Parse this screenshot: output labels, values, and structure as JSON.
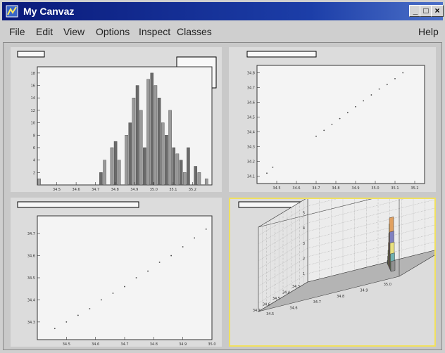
{
  "window": {
    "title": "My Canvaz",
    "controls": {
      "minimize": "_",
      "maximize": "□",
      "close": "×"
    }
  },
  "menubar": {
    "items": [
      "File",
      "Edit",
      "View",
      "Options",
      "Inspect",
      "Classes"
    ],
    "help": "Help"
  },
  "colors": {
    "title_bar": "#1c3ea8",
    "selected_pad_border": "#f0e060",
    "frame": "#f4f4f4"
  },
  "chart_data": [
    {
      "type": "bar",
      "title": "",
      "x_ticks": [
        "34.5",
        "34.6",
        "34.7",
        "34.8",
        "34.9",
        "35.0",
        "35.1",
        "35.2"
      ],
      "y_ticks": [
        "2",
        "4",
        "6",
        "8",
        "10",
        "12",
        "14",
        "16",
        "18"
      ],
      "xlim": [
        34.4,
        35.3
      ],
      "ylim": [
        0,
        19
      ],
      "values": [
        1,
        0,
        0,
        0,
        0,
        0,
        0,
        0,
        0,
        0,
        0,
        0,
        0,
        0,
        0,
        0,
        0,
        2,
        4,
        0,
        6,
        7,
        4,
        0,
        8,
        10,
        14,
        16,
        12,
        6,
        17,
        18,
        16,
        14,
        10,
        8,
        12,
        6,
        5,
        4,
        2,
        6,
        0,
        3,
        2,
        0,
        1,
        0
      ]
    },
    {
      "type": "scatter",
      "title": "",
      "x_ticks": [
        "34.5",
        "34.6",
        "34.7",
        "34.8",
        "34.9",
        "35.0",
        "35.1",
        "35.2"
      ],
      "y_ticks": [
        "34.1",
        "34.2",
        "34.3",
        "34.4",
        "34.5",
        "34.6",
        "34.7",
        "34.8"
      ],
      "xlim": [
        34.4,
        35.25
      ],
      "ylim": [
        34.05,
        34.85
      ],
      "points": [
        [
          34.45,
          34.12
        ],
        [
          34.48,
          34.16
        ],
        [
          34.7,
          34.37
        ],
        [
          34.74,
          34.41
        ],
        [
          34.78,
          34.45
        ],
        [
          34.82,
          34.49
        ],
        [
          34.86,
          34.53
        ],
        [
          34.9,
          34.57
        ],
        [
          34.94,
          34.61
        ],
        [
          34.98,
          34.65
        ],
        [
          35.02,
          34.69
        ],
        [
          35.06,
          34.72
        ],
        [
          35.1,
          34.76
        ],
        [
          35.14,
          34.8
        ]
      ]
    },
    {
      "type": "scatter",
      "title": "",
      "x_ticks": [
        "34.5",
        "34.6",
        "34.7",
        "34.8",
        "34.9",
        "35.0"
      ],
      "y_ticks": [
        "34.3",
        "34.4",
        "34.5",
        "34.6",
        "34.7"
      ],
      "xlim": [
        34.4,
        35.0
      ],
      "ylim": [
        34.22,
        34.78
      ],
      "points": [
        [
          34.46,
          34.27
        ],
        [
          34.5,
          34.3
        ],
        [
          34.54,
          34.33
        ],
        [
          34.58,
          34.36
        ],
        [
          34.62,
          34.4
        ],
        [
          34.66,
          34.43
        ],
        [
          34.7,
          34.46
        ],
        [
          34.74,
          34.5
        ],
        [
          34.78,
          34.53
        ],
        [
          34.82,
          34.57
        ],
        [
          34.86,
          34.6
        ],
        [
          34.9,
          34.64
        ],
        [
          34.94,
          34.68
        ],
        [
          34.98,
          34.72
        ]
      ]
    },
    {
      "type": "lego3d",
      "title": "",
      "depth_ticks": [
        "34.7",
        "34.6",
        "34.5",
        "34.4",
        "34.3"
      ],
      "width_ticks": [
        "34.5",
        "34.6",
        "34.7",
        "34.8",
        "34.9",
        "35.0"
      ],
      "z_ticks": [
        "5",
        "4",
        "3",
        "2",
        "1"
      ],
      "bars": [
        [
          0.6,
          0.9,
          0.2,
          "#5a5a5a"
        ],
        [
          0.62,
          0.85,
          0.5,
          "#8a8a8a"
        ],
        [
          0.64,
          0.8,
          0.9,
          "#7ab87a"
        ],
        [
          0.66,
          0.75,
          1.4,
          "#e8b070"
        ],
        [
          0.68,
          0.7,
          2.0,
          "#d8a0c8"
        ],
        [
          0.7,
          0.65,
          2.6,
          "#a0c060"
        ],
        [
          0.72,
          0.6,
          3.0,
          "#e0a060"
        ],
        [
          0.74,
          0.55,
          2.2,
          "#8080c0"
        ],
        [
          0.76,
          0.5,
          1.6,
          "#e8e080"
        ],
        [
          0.78,
          0.45,
          1.0,
          "#70b0b0"
        ],
        [
          0.8,
          0.4,
          0.6,
          "#909090"
        ]
      ]
    }
  ]
}
